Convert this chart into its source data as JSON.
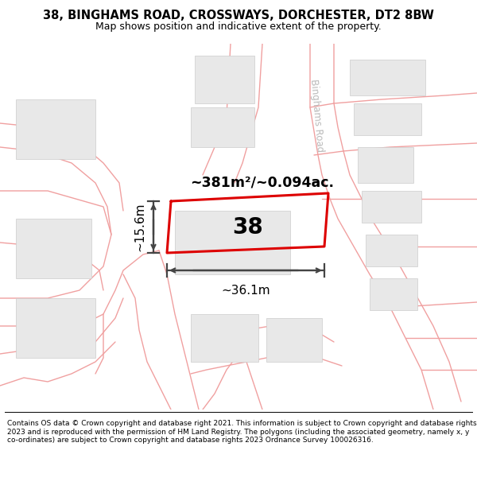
{
  "title_line1": "38, BINGHAMS ROAD, CROSSWAYS, DORCHESTER, DT2 8BW",
  "title_line2": "Map shows position and indicative extent of the property.",
  "footer_text": "Contains OS data © Crown copyright and database right 2021. This information is subject to Crown copyright and database rights 2023 and is reproduced with the permission of HM Land Registry. The polygons (including the associated geometry, namely x, y co-ordinates) are subject to Crown copyright and database rights 2023 Ordnance Survey 100026316.",
  "area_label": "~381m²/~0.094ac.",
  "width_label": "~36.1m",
  "height_label": "~15.6m",
  "plot_number": "38",
  "road_label": "Binghams Road",
  "background_color": "#ffffff",
  "map_bg": "#ffffff",
  "plot_outline_color": "#dd0000",
  "building_fill": "#e8e8e8",
  "building_stroke": "#cccccc",
  "road_line_color": "#f0a0a0",
  "dim_line_color": "#444444",
  "road_label_color": "#bbbbbb"
}
